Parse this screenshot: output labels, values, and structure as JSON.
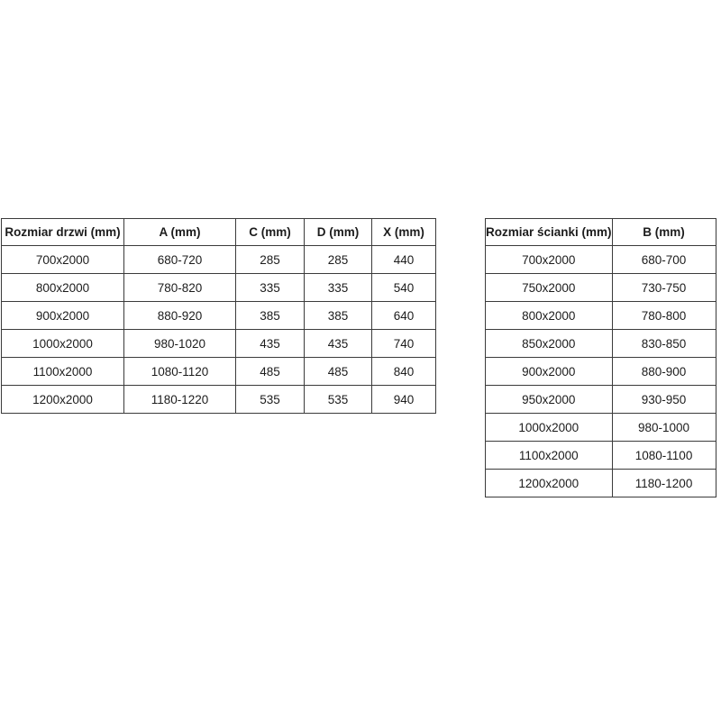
{
  "page": {
    "background_color": "#ffffff",
    "border_color": "#3b3b3b",
    "text_color": "#1c1c1c"
  },
  "tables": [
    {
      "id": "door-sizes-table",
      "headers": [
        "Rozmiar drzwi (mm)",
        "A (mm)",
        "C (mm)",
        "D (mm)",
        "X (mm)"
      ],
      "rows": [
        [
          "700x2000",
          "680-720",
          "285",
          "285",
          "440"
        ],
        [
          "800x2000",
          "780-820",
          "335",
          "335",
          "540"
        ],
        [
          "900x2000",
          "880-920",
          "385",
          "385",
          "640"
        ],
        [
          "1000x2000",
          "980-1020",
          "435",
          "435",
          "740"
        ],
        [
          "1100x2000",
          "1080-1120",
          "485",
          "485",
          "840"
        ],
        [
          "1200x2000",
          "1180-1220",
          "535",
          "535",
          "940"
        ]
      ]
    },
    {
      "id": "wall-sizes-table",
      "headers": [
        "Rozmiar ścianki (mm)",
        "B (mm)"
      ],
      "rows": [
        [
          "700x2000",
          "680-700"
        ],
        [
          "750x2000",
          "730-750"
        ],
        [
          "800x2000",
          "780-800"
        ],
        [
          "850x2000",
          "830-850"
        ],
        [
          "900x2000",
          "880-900"
        ],
        [
          "950x2000",
          "930-950"
        ],
        [
          "1000x2000",
          "980-1000"
        ],
        [
          "1100x2000",
          "1080-1100"
        ],
        [
          "1200x2000",
          "1180-1200"
        ]
      ]
    }
  ]
}
